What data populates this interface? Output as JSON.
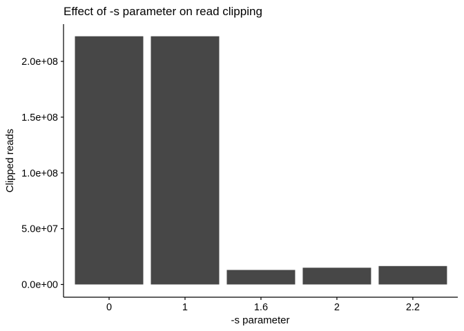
{
  "chart_data": {
    "type": "bar",
    "title": "Effect of -s parameter on read clipping",
    "xlabel": "-s parameter",
    "ylabel": "Clipped reads",
    "categories": [
      "0",
      "1",
      "1.6",
      "2",
      "2.2"
    ],
    "values": [
      222500000,
      222500000,
      13000000,
      15000000,
      16500000
    ],
    "ylim": [
      0,
      230000000
    ],
    "yticks": [
      0,
      50000000,
      100000000,
      150000000,
      200000000
    ],
    "ytick_labels": [
      "0.0e+00",
      "5.0e+07",
      "1.0e+08",
      "1.5e+08",
      "2.0e+08"
    ],
    "bar_color": "#474747",
    "grid": false,
    "legend": "none"
  }
}
